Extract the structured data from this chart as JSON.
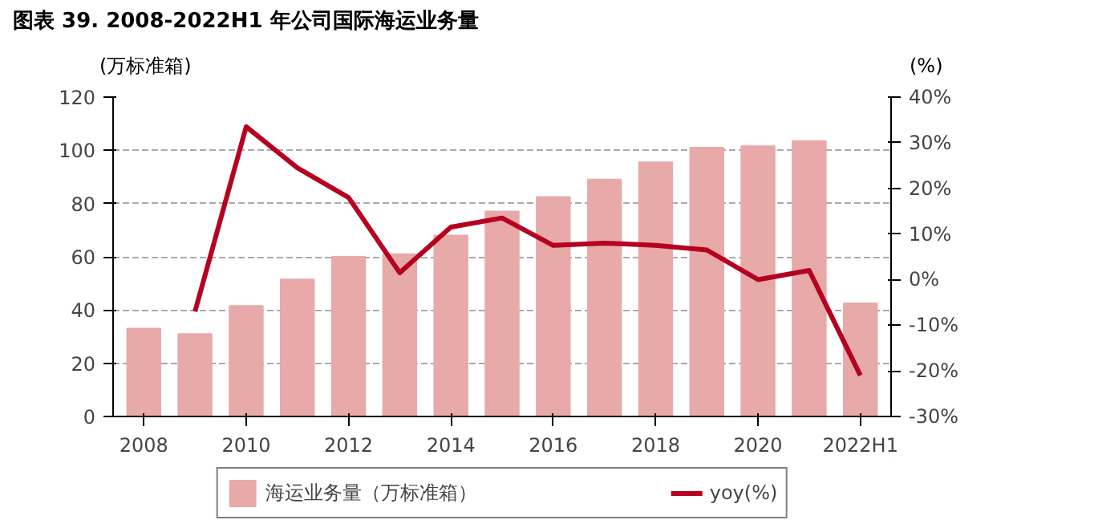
{
  "chart_data": {
    "type": "bar",
    "title": "图表 39. 2008-2022H1 年公司国际海运业务量",
    "ylabel": "(万标准箱)",
    "y2label": "(%)",
    "categories": [
      "2008",
      null,
      "2010",
      null,
      "2012",
      null,
      "2014",
      null,
      "2016",
      null,
      "2018",
      null,
      "2020",
      null,
      "2022H1"
    ],
    "series": [
      {
        "name": "海运业务量（万标准箱）",
        "color": "#e8a9a9",
        "values": [
          33,
          31,
          41.5,
          51.5,
          60,
          61,
          68,
          77,
          82.5,
          89,
          95.5,
          101,
          101.5,
          103.5,
          42.5
        ]
      },
      {
        "name": "yoy(%)",
        "type": "line",
        "axis": "y2",
        "color": "#b5001f",
        "values": [
          null,
          -7,
          33.5,
          24.5,
          18,
          1.5,
          11.5,
          13.5,
          7.5,
          8,
          7.5,
          6.5,
          0,
          2,
          -21
        ]
      }
    ],
    "ylim": [
      0,
      120
    ],
    "yticks": [
      0,
      20,
      40,
      60,
      80,
      100,
      120
    ],
    "y2lim": [
      -30,
      40
    ],
    "y2ticks": [
      {
        "value": -30,
        "label": "-30%"
      },
      {
        "value": -20,
        "label": "-20%"
      },
      {
        "value": -10,
        "label": "-10%"
      },
      {
        "value": 0,
        "label": "0%"
      },
      {
        "value": 10,
        "label": "10%"
      },
      {
        "value": 20,
        "label": "20%"
      },
      {
        "value": 30,
        "label": "30%"
      },
      {
        "value": 40,
        "label": "40%"
      }
    ],
    "grid": "y",
    "legend": "bottom"
  }
}
